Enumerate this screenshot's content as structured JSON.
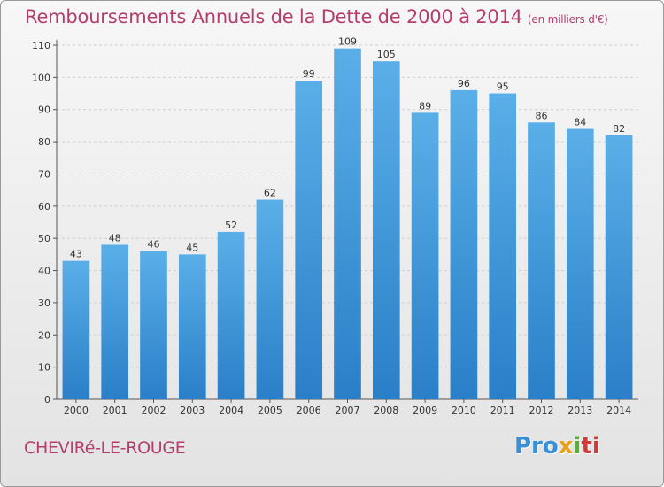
{
  "header": {
    "title": "Remboursements Annuels de la Dette de 2000 à 2014",
    "unit": "(en milliers d'€)"
  },
  "footer": {
    "commune": "CHEVIRé-LE-ROUGE",
    "logo_parts": [
      "Pro",
      "x",
      "i",
      "ti"
    ]
  },
  "colors": {
    "title": "#b43d6e",
    "bar_top": "#5aafe8",
    "bar_bottom": "#2a7fc8"
  },
  "chart_data": {
    "type": "bar",
    "title": "Remboursements Annuels de la Dette de 2000 à 2014",
    "categories": [
      "2000",
      "2001",
      "2002",
      "2003",
      "2004",
      "2005",
      "2006",
      "2007",
      "2008",
      "2009",
      "2010",
      "2011",
      "2012",
      "2013",
      "2014"
    ],
    "values": [
      43,
      48,
      46,
      45,
      52,
      62,
      99,
      109,
      105,
      89,
      96,
      95,
      86,
      84,
      82
    ],
    "ylim": [
      0,
      110
    ],
    "yticks": [
      0,
      10,
      20,
      30,
      40,
      50,
      60,
      70,
      80,
      90,
      100,
      110
    ],
    "grid": true,
    "legend": "none"
  }
}
